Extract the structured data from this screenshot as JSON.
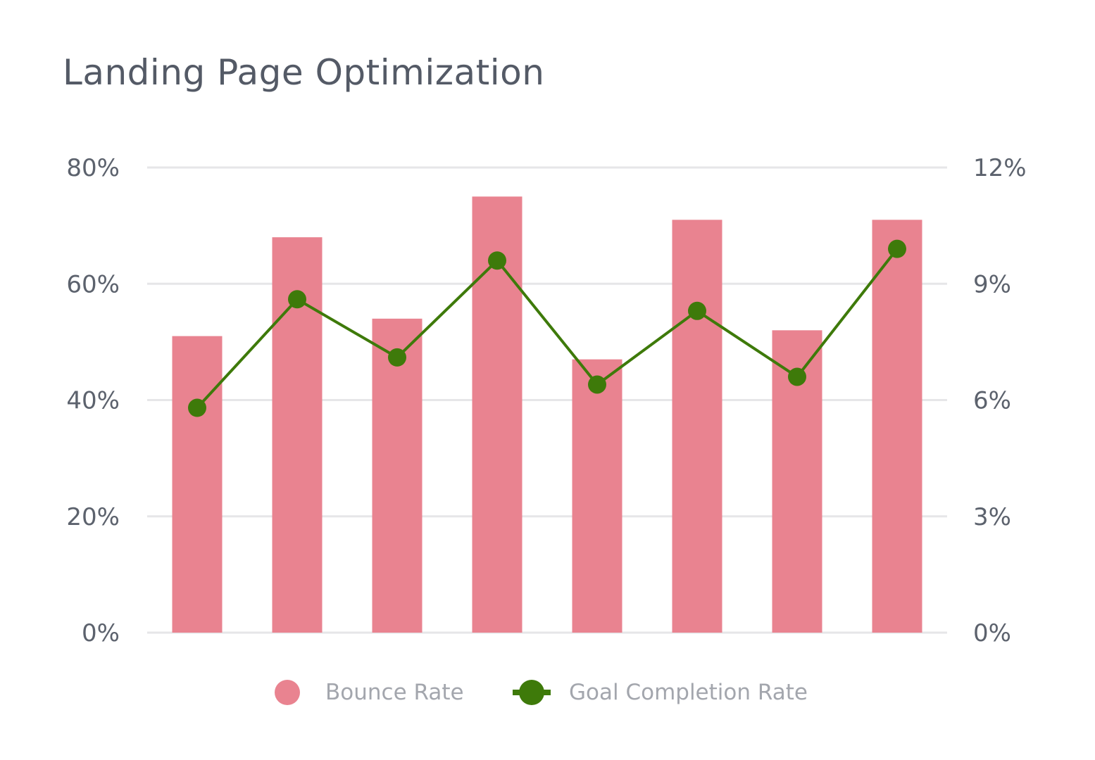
{
  "chart_data": {
    "type": "bar+line",
    "title": "Landing Page Optimization",
    "categories": [
      "",
      "",
      "",
      "",
      "",
      "",
      "",
      ""
    ],
    "series": [
      {
        "name": "Bounce Rate",
        "type": "bar",
        "axis": "left",
        "color": "#e98390",
        "values": [
          51,
          68,
          54,
          75,
          47,
          71,
          52,
          71
        ]
      },
      {
        "name": "Goal Completion Rate",
        "type": "line",
        "axis": "right",
        "color": "#3e7a0a",
        "values": [
          5.8,
          8.6,
          7.1,
          9.6,
          6.4,
          8.3,
          6.6,
          9.9
        ]
      }
    ],
    "left_axis": {
      "range": [
        0,
        80
      ],
      "ticks": [
        "0%",
        "20%",
        "40%",
        "60%",
        "80%"
      ],
      "tick_values": [
        0,
        20,
        40,
        60,
        80
      ]
    },
    "right_axis": {
      "range": [
        0,
        12
      ],
      "ticks": [
        "0%",
        "3%",
        "6%",
        "9%",
        "12%"
      ],
      "tick_values": [
        0,
        3,
        6,
        9,
        12
      ]
    },
    "grid": true,
    "legend_placement": "bottom"
  }
}
